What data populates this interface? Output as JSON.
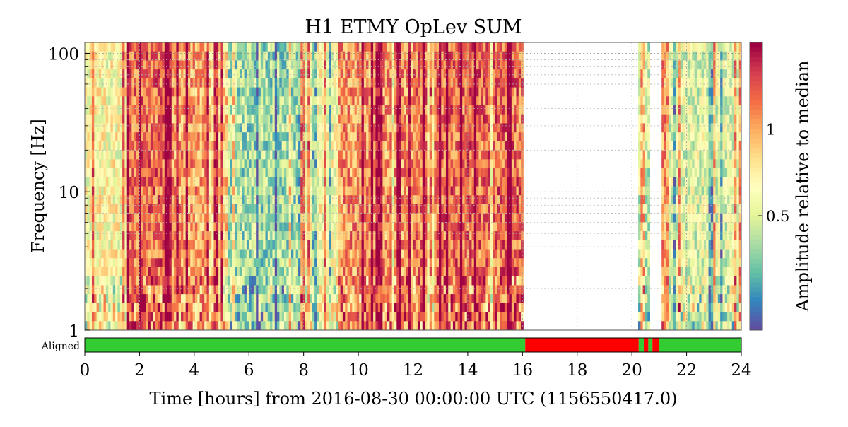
{
  "chart_data": {
    "type": "heatmap",
    "title": "H1 ETMY OpLev SUM",
    "xlabel": "Time [hours] from 2016-08-30 00:00:00 UTC (1156550417.0)",
    "ylabel": "Frequency [Hz]",
    "colorbar_label": "Amplitude relative to median",
    "xlim": [
      0,
      24
    ],
    "ylim": [
      1,
      120
    ],
    "y_scale": "log",
    "grid": true,
    "x_ticks": [
      0,
      2,
      4,
      6,
      8,
      10,
      12,
      14,
      16,
      18,
      20,
      22,
      24
    ],
    "x_tick_labels": [
      "0",
      "2",
      "4",
      "6",
      "8",
      "10",
      "12",
      "14",
      "16",
      "18",
      "20",
      "22",
      "24"
    ],
    "y_ticks": [
      1,
      10,
      100
    ],
    "y_tick_labels": [
      "1",
      "10",
      "100"
    ],
    "colorbar_ticks": [
      0.5,
      1
    ],
    "colorbar_tick_labels": [
      "0.5",
      "1"
    ],
    "colormap": "Spectral_r",
    "colormap_stops": [
      "#5e4fa2",
      "#3288bd",
      "#66c2a5",
      "#abdda4",
      "#e6f598",
      "#ffffbf",
      "#fee08b",
      "#fdae61",
      "#f46d43",
      "#d53e4f",
      "#9e0142"
    ],
    "no_data_intervals": [
      [
        16.0,
        20.25
      ],
      [
        20.7,
        21.05
      ]
    ],
    "activity_profile": [
      {
        "start": 0.0,
        "end": 1.5,
        "level": 0.5
      },
      {
        "start": 1.5,
        "end": 3.0,
        "level": 0.8
      },
      {
        "start": 3.0,
        "end": 4.5,
        "level": 0.72
      },
      {
        "start": 4.5,
        "end": 5.2,
        "level": 0.6
      },
      {
        "start": 5.2,
        "end": 7.8,
        "level": 0.3
      },
      {
        "start": 7.8,
        "end": 9.3,
        "level": 0.48
      },
      {
        "start": 9.3,
        "end": 12.0,
        "level": 0.74
      },
      {
        "start": 12.0,
        "end": 16.0,
        "level": 0.8
      },
      {
        "start": 20.25,
        "end": 20.7,
        "level": 0.38
      },
      {
        "start": 21.05,
        "end": 24.0,
        "level": 0.42
      }
    ],
    "state_bar": {
      "label": "Aligned",
      "active_color": "#33cc33",
      "inactive_color": "#ff0000",
      "segments": [
        {
          "start": 0.0,
          "end": 16.1,
          "state": "active"
        },
        {
          "start": 16.1,
          "end": 20.25,
          "state": "inactive"
        },
        {
          "start": 20.25,
          "end": 20.45,
          "state": "active"
        },
        {
          "start": 20.45,
          "end": 20.6,
          "state": "inactive"
        },
        {
          "start": 20.6,
          "end": 20.75,
          "state": "active"
        },
        {
          "start": 20.75,
          "end": 21.0,
          "state": "inactive"
        },
        {
          "start": 21.0,
          "end": 24.0,
          "state": "active"
        }
      ]
    }
  }
}
